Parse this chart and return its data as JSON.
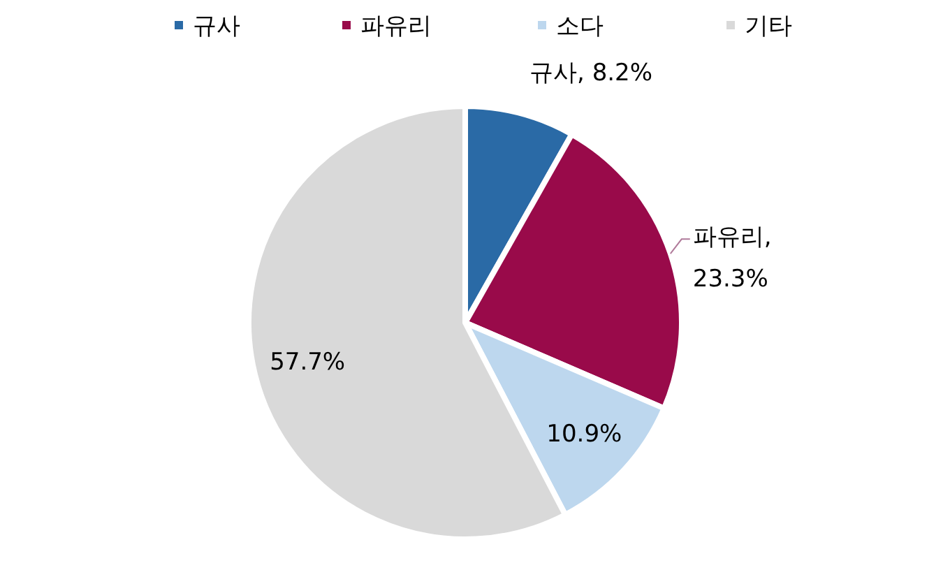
{
  "chart_data": {
    "type": "pie",
    "categories": [
      "규사",
      "파유리",
      "소다",
      "기타"
    ],
    "values": [
      8.2,
      23.3,
      10.9,
      57.7
    ],
    "colors": [
      "#2a6aa6",
      "#990a4a",
      "#bdd7ee",
      "#d9d9d9"
    ],
    "value_labels": [
      "규사, 8.2%",
      "파유리, 23.3%",
      "10.9%",
      "57.7%"
    ],
    "legend": "top"
  }
}
